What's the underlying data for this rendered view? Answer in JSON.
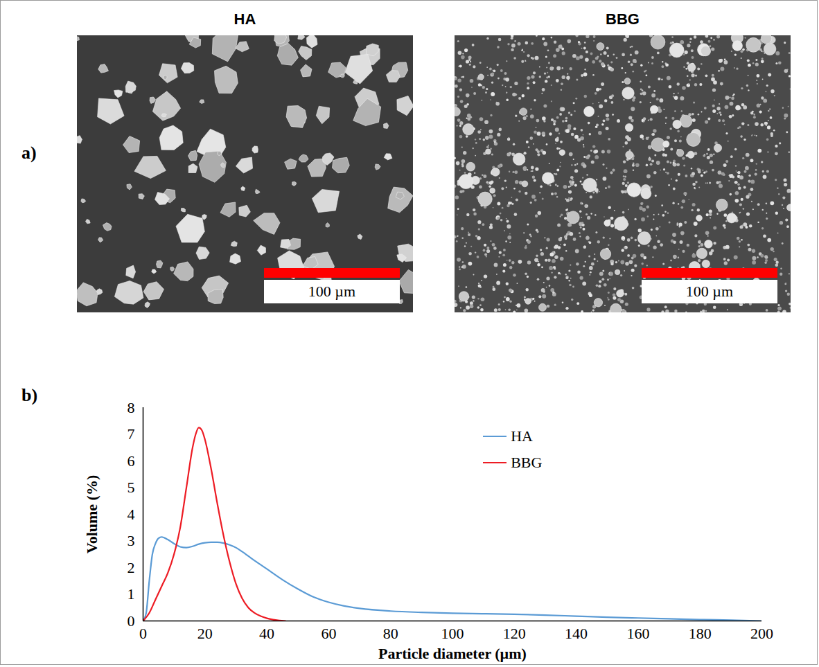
{
  "panel_a": {
    "label": "a)",
    "images": [
      {
        "title": "HA",
        "scale_bar": "100 µm"
      },
      {
        "title": "BBG",
        "scale_bar": "100 µm"
      }
    ]
  },
  "chart_data": {
    "type": "line",
    "panel_label": "b)",
    "x_label": "Particle diameter (µm)",
    "y_label": "Volume (%)",
    "xlim": [
      0,
      200
    ],
    "xticks": [
      0,
      20,
      40,
      60,
      80,
      100,
      120,
      140,
      160,
      180,
      200
    ],
    "ylim": [
      0,
      8
    ],
    "yticks": [
      0,
      1,
      2,
      3,
      4,
      5,
      6,
      7,
      8
    ],
    "grid": false,
    "legend": "center",
    "series": [
      {
        "name": "HA",
        "color": "#5b9bd5",
        "x": [
          0,
          1,
          2,
          3,
          4,
          5,
          6,
          8,
          10,
          12,
          14,
          16,
          18,
          20,
          22,
          24,
          26,
          28,
          30,
          32,
          35,
          40,
          45,
          50,
          55,
          60,
          65,
          70,
          80,
          90,
          100,
          110,
          120,
          130,
          140,
          150,
          160,
          170,
          180,
          190,
          200
        ],
        "values": [
          0,
          0.3,
          1.5,
          2.5,
          2.9,
          3.1,
          3.15,
          3.05,
          2.9,
          2.78,
          2.75,
          2.8,
          2.88,
          2.93,
          2.95,
          2.95,
          2.92,
          2.85,
          2.75,
          2.6,
          2.35,
          1.95,
          1.55,
          1.2,
          0.9,
          0.7,
          0.56,
          0.47,
          0.37,
          0.32,
          0.29,
          0.27,
          0.25,
          0.22,
          0.18,
          0.14,
          0.11,
          0.08,
          0.05,
          0.03,
          0
        ]
      },
      {
        "name": "BBG",
        "color": "#ed1c24",
        "x": [
          0,
          2,
          4,
          6,
          8,
          10,
          12,
          14,
          16,
          17,
          18,
          19,
          20,
          22,
          24,
          26,
          28,
          30,
          32,
          34,
          36,
          38,
          40,
          42,
          44,
          46
        ],
        "values": [
          0,
          0.3,
          0.8,
          1.3,
          1.8,
          2.5,
          3.5,
          5.0,
          6.5,
          7.0,
          7.25,
          7.15,
          6.8,
          5.7,
          4.4,
          3.2,
          2.2,
          1.4,
          0.85,
          0.5,
          0.3,
          0.18,
          0.1,
          0.05,
          0.02,
          0
        ]
      }
    ]
  }
}
